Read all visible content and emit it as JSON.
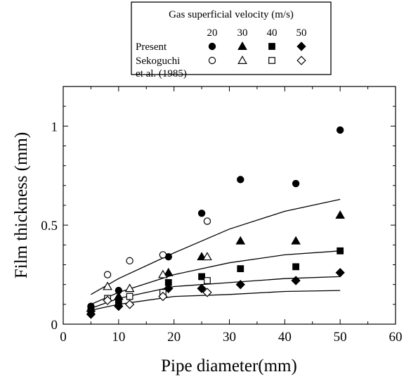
{
  "chart_data": {
    "type": "scatter",
    "xlabel": "Pipe diameter(mm)",
    "ylabel": "Film thickness (mm)",
    "xlim": [
      0,
      60
    ],
    "ylim": [
      0,
      1.2
    ],
    "x_ticks": [
      0,
      10,
      20,
      30,
      40,
      50,
      60
    ],
    "y_ticks": [
      {
        "value": 0,
        "label": "0"
      },
      {
        "value": 0.5,
        "label": "0.5"
      },
      {
        "value": 1,
        "label": "1"
      }
    ],
    "grid": false,
    "legend": {
      "position": "top",
      "title": "Gas superficial velocity (m/s)",
      "velocities": [
        "20",
        "30",
        "40",
        "50"
      ],
      "groups": [
        {
          "label_lines": [
            "Present"
          ],
          "filled": true
        },
        {
          "label_lines": [
            "Sekoguchi",
            "et al. (1985)"
          ],
          "filled": false
        }
      ],
      "markers": [
        "circle",
        "triangle",
        "square",
        "diamond"
      ]
    },
    "series": [
      {
        "velocity": "20",
        "group": "Present",
        "marker": "circle",
        "filled": true,
        "points": [
          [
            5,
            0.09
          ],
          [
            10,
            0.17
          ],
          [
            19,
            0.34
          ],
          [
            25,
            0.56
          ],
          [
            32,
            0.73
          ],
          [
            42,
            0.71
          ],
          [
            50,
            0.98
          ]
        ]
      },
      {
        "velocity": "30",
        "group": "Present",
        "marker": "triangle",
        "filled": true,
        "points": [
          [
            5,
            0.08
          ],
          [
            10,
            0.14
          ],
          [
            19,
            0.26
          ],
          [
            25,
            0.34
          ],
          [
            32,
            0.42
          ],
          [
            42,
            0.42
          ],
          [
            50,
            0.55
          ]
        ]
      },
      {
        "velocity": "40",
        "group": "Present",
        "marker": "square",
        "filled": true,
        "points": [
          [
            5,
            0.07
          ],
          [
            10,
            0.11
          ],
          [
            19,
            0.21
          ],
          [
            25,
            0.24
          ],
          [
            32,
            0.28
          ],
          [
            42,
            0.29
          ],
          [
            50,
            0.37
          ]
        ]
      },
      {
        "velocity": "50",
        "group": "Present",
        "marker": "diamond",
        "filled": true,
        "points": [
          [
            5,
            0.05
          ],
          [
            10,
            0.09
          ],
          [
            19,
            0.18
          ],
          [
            25,
            0.18
          ],
          [
            32,
            0.2
          ],
          [
            42,
            0.22
          ],
          [
            50,
            0.26
          ]
        ]
      },
      {
        "velocity": "20",
        "group": "Sekoguchi et al. (1985)",
        "marker": "circle",
        "filled": false,
        "points": [
          [
            8,
            0.25
          ],
          [
            12,
            0.32
          ],
          [
            18,
            0.35
          ],
          [
            26,
            0.52
          ]
        ]
      },
      {
        "velocity": "30",
        "group": "Sekoguchi et al. (1985)",
        "marker": "triangle",
        "filled": false,
        "points": [
          [
            8,
            0.19
          ],
          [
            12,
            0.18
          ],
          [
            18,
            0.25
          ],
          [
            26,
            0.34
          ]
        ]
      },
      {
        "velocity": "40",
        "group": "Sekoguchi et al. (1985)",
        "marker": "square",
        "filled": false,
        "points": [
          [
            8,
            0.13
          ],
          [
            12,
            0.14
          ],
          [
            18,
            0.16
          ],
          [
            26,
            0.22
          ]
        ]
      },
      {
        "velocity": "50",
        "group": "Sekoguchi et al. (1985)",
        "marker": "diamond",
        "filled": false,
        "points": [
          [
            8,
            0.12
          ],
          [
            12,
            0.1
          ],
          [
            18,
            0.14
          ],
          [
            26,
            0.16
          ]
        ]
      }
    ],
    "curves": [
      {
        "velocity": "20",
        "points": [
          [
            5,
            0.15
          ],
          [
            10,
            0.23
          ],
          [
            20,
            0.36
          ],
          [
            30,
            0.48
          ],
          [
            40,
            0.57
          ],
          [
            50,
            0.63
          ]
        ]
      },
      {
        "velocity": "30",
        "points": [
          [
            5,
            0.1
          ],
          [
            10,
            0.16
          ],
          [
            20,
            0.25
          ],
          [
            30,
            0.31
          ],
          [
            40,
            0.35
          ],
          [
            50,
            0.37
          ]
        ]
      },
      {
        "velocity": "40",
        "points": [
          [
            5,
            0.08
          ],
          [
            10,
            0.13
          ],
          [
            20,
            0.19
          ],
          [
            30,
            0.21
          ],
          [
            40,
            0.23
          ],
          [
            50,
            0.24
          ]
        ]
      },
      {
        "velocity": "50",
        "points": [
          [
            5,
            0.07
          ],
          [
            10,
            0.1
          ],
          [
            20,
            0.14
          ],
          [
            30,
            0.15
          ],
          [
            40,
            0.165
          ],
          [
            50,
            0.17
          ]
        ]
      }
    ]
  }
}
